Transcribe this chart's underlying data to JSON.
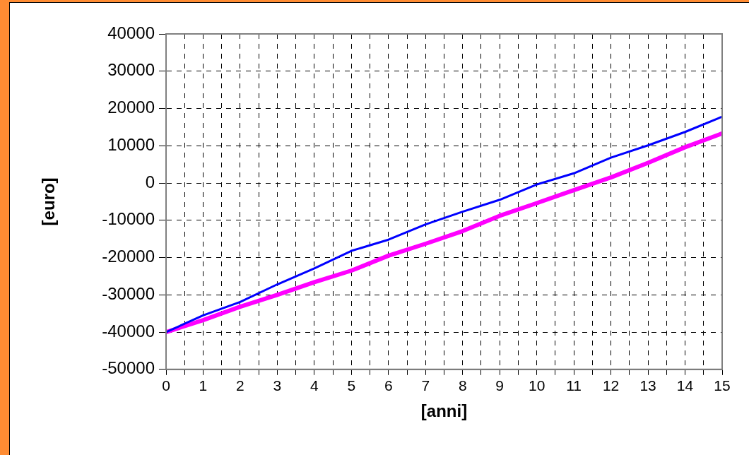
{
  "chart_data": {
    "type": "line",
    "xlabel": "[anni]",
    "ylabel": "[euro]",
    "x": [
      0,
      1,
      2,
      3,
      4,
      5,
      6,
      7,
      8,
      9,
      10,
      11,
      12,
      13,
      14,
      15
    ],
    "series": [
      {
        "color": "#0000ff",
        "values": [
          -40000,
          -35500,
          -31900,
          -27200,
          -22900,
          -18200,
          -15200,
          -11100,
          -7700,
          -4500,
          -400,
          2600,
          6800,
          10100,
          13700,
          17800
        ]
      },
      {
        "color": "#ff00ff",
        "values": [
          -40000,
          -36800,
          -33200,
          -30000,
          -26600,
          -23500,
          -19500,
          -16300,
          -12900,
          -8800,
          -5400,
          -1900,
          1500,
          5400,
          9600,
          13300
        ]
      }
    ],
    "xlim": [
      0,
      15
    ],
    "xticks": [
      0,
      {
        "value": 0.5,
        "label": null
      },
      1,
      {
        "value": 1.5,
        "label": null
      },
      2,
      {
        "value": 2.5,
        "label": null
      },
      3,
      {
        "value": 3.5,
        "label": null
      },
      4,
      {
        "value": 4.5,
        "label": null
      },
      5,
      {
        "value": 5.5,
        "label": null
      },
      6,
      {
        "value": 6.5,
        "label": null
      },
      7,
      {
        "value": 7.5,
        "label": null
      },
      8,
      {
        "value": 8.5,
        "label": null
      },
      9,
      {
        "value": 9.5,
        "label": null
      },
      10,
      {
        "value": 10.5,
        "label": null
      },
      11,
      {
        "value": 11.5,
        "label": null
      },
      12,
      {
        "value": 12.5,
        "label": null
      },
      13,
      {
        "value": 13.5,
        "label": null
      },
      14,
      {
        "value": 14.5,
        "label": null
      },
      15
    ],
    "ylim": [
      -50000,
      40000
    ],
    "yticks": [
      -50000,
      -40000,
      -30000,
      -20000,
      -10000,
      0,
      10000,
      20000,
      30000,
      40000
    ],
    "grid": true,
    "legend": false,
    "marker": "none",
    "line_style": "solid"
  }
}
